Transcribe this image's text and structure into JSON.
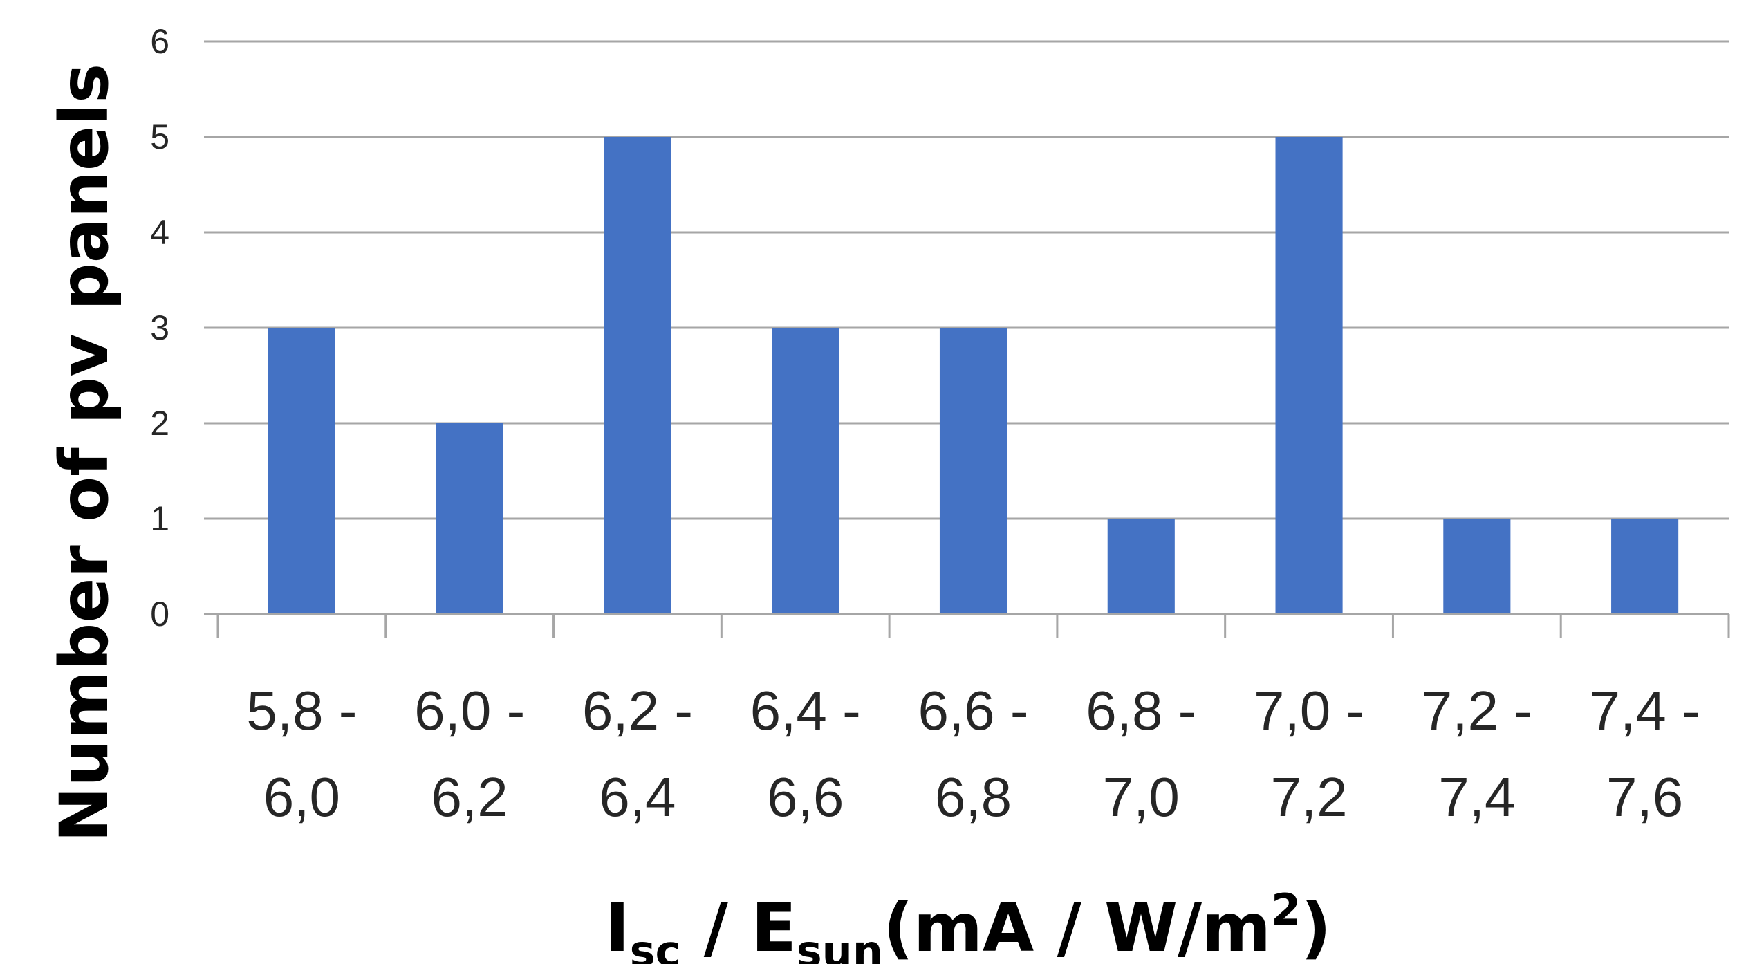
{
  "chart_data": {
    "type": "bar",
    "categories": [
      [
        "5,8 -",
        "6,0"
      ],
      [
        "6,0 -",
        "6,2"
      ],
      [
        "6,2 -",
        "6,4"
      ],
      [
        "6,4 -",
        "6,6"
      ],
      [
        "6,6 -",
        "6,8"
      ],
      [
        "6,8 -",
        "7,0"
      ],
      [
        "7,0 -",
        "7,2"
      ],
      [
        "7,2 -",
        "7,4"
      ],
      [
        "7,4 -",
        "7,6"
      ]
    ],
    "values": [
      3,
      2,
      5,
      3,
      3,
      1,
      5,
      1,
      1
    ],
    "ylim": [
      0,
      6
    ],
    "yticks": [
      "0",
      "1",
      "2",
      "3",
      "4",
      "5",
      "6"
    ],
    "ylabel": "Number of pv panels",
    "xlabel": {
      "main": "I",
      "main_sub": "sc",
      "sep": " / E",
      "sep_sub": "sun",
      "unit": "(mA / W/m",
      "unit_sup": "2",
      "close": ")"
    },
    "grid": true,
    "bar_color": "#4472c4"
  }
}
